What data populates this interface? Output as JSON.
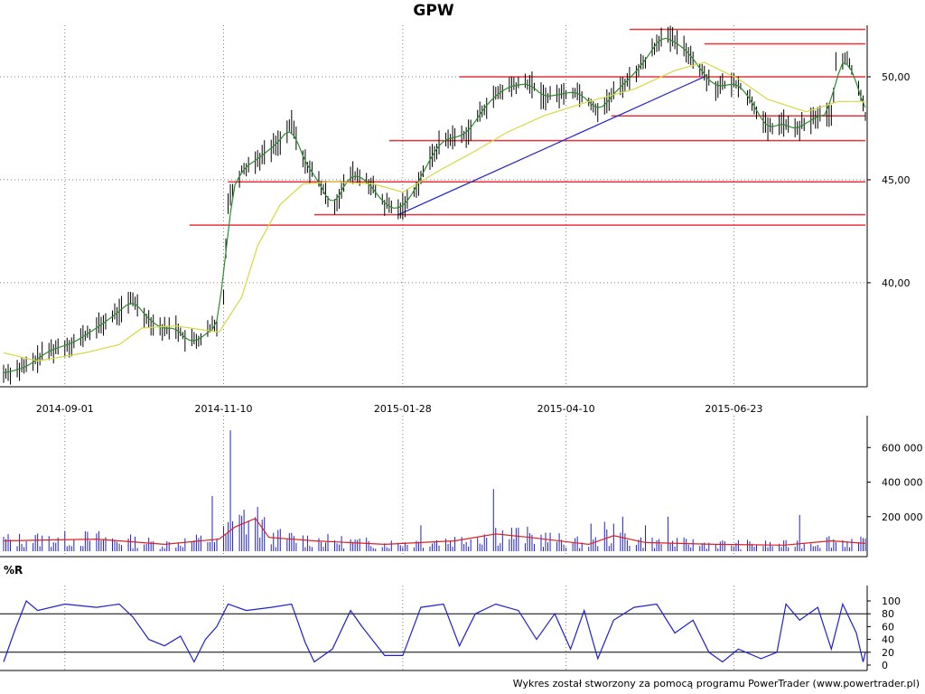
{
  "title": "GPW",
  "footer": "Wykres został stworzony za pomocą programu PowerTrader (www.powertrader.pl)",
  "colors": {
    "candle": "#000000",
    "ma_short": "#2e8b2e",
    "ma_long": "#d8d840",
    "resistance": "#e8333a",
    "trendline": "#2020d0",
    "volume": "#2020c8",
    "volume_avg": "#e02020",
    "wr_line": "#2020d0",
    "grid": "#808080"
  },
  "chart_data": [
    {
      "type": "line",
      "name": "price",
      "x_range": [
        "2014-08-05",
        "2015-08-20"
      ],
      "x_ticks": [
        "2014-09-01",
        "2014-11-10",
        "2015-01-28",
        "2015-04-10",
        "2015-06-23"
      ],
      "ylim": [
        35.3,
        52.5
      ],
      "y_ticks": [
        "40,00",
        "45,00",
        "50,00"
      ],
      "y_tick_values": [
        40,
        45,
        50
      ],
      "price_path": [
        [
          "2014-08-05",
          35.6
        ],
        [
          "2014-08-15",
          35.9
        ],
        [
          "2014-08-25",
          36.7
        ],
        [
          "2014-09-05",
          37.1
        ],
        [
          "2014-09-15",
          37.8
        ],
        [
          "2014-09-25",
          38.6
        ],
        [
          "2014-10-01",
          39.2
        ],
        [
          "2014-10-08",
          38.2
        ],
        [
          "2014-10-15",
          37.7
        ],
        [
          "2014-10-20",
          37.9
        ],
        [
          "2014-10-25",
          37.1
        ],
        [
          "2014-11-01",
          37.3
        ],
        [
          "2014-11-05",
          37.9
        ],
        [
          "2014-11-08",
          37.7
        ],
        [
          "2014-11-10",
          39.5
        ],
        [
          "2014-11-12",
          44.0
        ],
        [
          "2014-11-18",
          45.5
        ],
        [
          "2014-11-25",
          46.0
        ],
        [
          "2014-12-05",
          46.9
        ],
        [
          "2014-12-10",
          47.7
        ],
        [
          "2014-12-15",
          46.0
        ],
        [
          "2014-12-22",
          44.9
        ],
        [
          "2014-12-28",
          43.6
        ],
        [
          "2015-01-05",
          45.3
        ],
        [
          "2015-01-12",
          45.0
        ],
        [
          "2015-01-20",
          43.8
        ],
        [
          "2015-01-26",
          43.5
        ],
        [
          "2015-02-01",
          44.2
        ],
        [
          "2015-02-07",
          45.6
        ],
        [
          "2015-02-14",
          46.9
        ],
        [
          "2015-02-25",
          47.2
        ],
        [
          "2015-03-07",
          48.8
        ],
        [
          "2015-03-15",
          49.5
        ],
        [
          "2015-03-25",
          49.7
        ],
        [
          "2015-03-31",
          49.0
        ],
        [
          "2015-04-15",
          49.3
        ],
        [
          "2015-04-25",
          48.3
        ],
        [
          "2015-05-01",
          49.2
        ],
        [
          "2015-05-08",
          49.9
        ],
        [
          "2015-05-15",
          50.8
        ],
        [
          "2015-05-22",
          52.0
        ],
        [
          "2015-05-28",
          51.7
        ],
        [
          "2015-06-03",
          51.2
        ],
        [
          "2015-06-10",
          50.1
        ],
        [
          "2015-06-15",
          49.5
        ],
        [
          "2015-06-25",
          49.7
        ],
        [
          "2015-07-02",
          48.6
        ],
        [
          "2015-07-08",
          47.4
        ],
        [
          "2015-07-14",
          47.8
        ],
        [
          "2015-07-20",
          47.4
        ],
        [
          "2015-07-27",
          47.9
        ],
        [
          "2015-08-01",
          48.2
        ],
        [
          "2015-08-05",
          48.1
        ],
        [
          "2015-08-07",
          50.5
        ],
        [
          "2015-08-12",
          50.9
        ],
        [
          "2015-08-17",
          49.5
        ],
        [
          "2015-08-20",
          48.1
        ]
      ],
      "ma_long_path": [
        [
          "2014-08-05",
          36.6
        ],
        [
          "2014-08-20",
          36.2
        ],
        [
          "2014-09-10",
          36.6
        ],
        [
          "2014-09-25",
          37.0
        ],
        [
          "2014-10-05",
          37.8
        ],
        [
          "2014-10-20",
          37.9
        ],
        [
          "2014-11-08",
          37.6
        ],
        [
          "2014-11-18",
          39.3
        ],
        [
          "2014-11-25",
          41.8
        ],
        [
          "2014-12-05",
          43.8
        ],
        [
          "2014-12-15",
          44.8
        ],
        [
          "2014-12-28",
          44.9
        ],
        [
          "2015-01-15",
          44.8
        ],
        [
          "2015-01-28",
          44.4
        ],
        [
          "2015-02-14",
          45.5
        ],
        [
          "2015-03-01",
          46.4
        ],
        [
          "2015-03-15",
          47.3
        ],
        [
          "2015-03-31",
          48.1
        ],
        [
          "2015-04-20",
          48.8
        ],
        [
          "2015-05-10",
          49.4
        ],
        [
          "2015-05-28",
          50.3
        ],
        [
          "2015-06-10",
          50.7
        ],
        [
          "2015-06-25",
          49.9
        ],
        [
          "2015-07-08",
          48.9
        ],
        [
          "2015-07-25",
          48.3
        ],
        [
          "2015-08-08",
          48.8
        ],
        [
          "2015-08-20",
          48.8
        ]
      ],
      "resistance_lines": [
        {
          "y": 52.3,
          "from": "2015-05-08",
          "to": "2015-08-20"
        },
        {
          "y": 51.6,
          "from": "2015-06-10",
          "to": "2015-08-20"
        },
        {
          "y": 50.0,
          "from": "2015-02-22",
          "to": "2015-08-20"
        },
        {
          "y": 48.1,
          "from": "2015-04-30",
          "to": "2015-08-20"
        },
        {
          "y": 46.9,
          "from": "2015-01-22",
          "to": "2015-08-20"
        },
        {
          "y": 44.9,
          "from": "2014-11-12",
          "to": "2015-08-20"
        },
        {
          "y": 43.3,
          "from": "2014-12-20",
          "to": "2015-08-20"
        },
        {
          "y": 42.8,
          "from": "2014-10-26",
          "to": "2015-08-20"
        }
      ],
      "trendline": {
        "from": [
          "2015-01-26",
          43.3
        ],
        "to": [
          "2015-06-10",
          50.0
        ]
      }
    },
    {
      "type": "bar",
      "name": "volume",
      "ylim": [
        0,
        680000
      ],
      "y_ticks": [
        "200 000",
        "400 000",
        "600 000"
      ],
      "y_tick_values": [
        200000,
        400000,
        600000
      ],
      "spikes": [
        [
          "2014-11-05",
          320000
        ],
        [
          "2014-11-13",
          700000
        ],
        [
          "2014-11-16",
          260000
        ],
        [
          "2014-11-19",
          240000
        ],
        [
          "2015-02-05",
          150000
        ],
        [
          "2015-03-01",
          160000
        ],
        [
          "2015-03-09",
          360000
        ],
        [
          "2015-04-21",
          160000
        ],
        [
          "2015-04-27",
          170000
        ],
        [
          "2015-05-05",
          200000
        ],
        [
          "2015-05-15",
          150000
        ],
        [
          "2015-05-25",
          200000
        ],
        [
          "2015-07-22",
          210000
        ]
      ],
      "average_path": [
        [
          "2014-08-05",
          60000
        ],
        [
          "2014-09-15",
          70000
        ],
        [
          "2014-10-15",
          40000
        ],
        [
          "2014-11-08",
          70000
        ],
        [
          "2014-11-15",
          140000
        ],
        [
          "2014-11-24",
          190000
        ],
        [
          "2014-11-30",
          80000
        ],
        [
          "2014-12-20",
          60000
        ],
        [
          "2015-01-20",
          40000
        ],
        [
          "2015-02-20",
          60000
        ],
        [
          "2015-03-10",
          100000
        ],
        [
          "2015-03-25",
          80000
        ],
        [
          "2015-04-20",
          40000
        ],
        [
          "2015-05-01",
          90000
        ],
        [
          "2015-05-15",
          50000
        ],
        [
          "2015-06-15",
          40000
        ],
        [
          "2015-07-15",
          35000
        ],
        [
          "2015-08-05",
          60000
        ],
        [
          "2015-08-20",
          45000
        ]
      ]
    },
    {
      "type": "line",
      "name": "wr",
      "title": "%R",
      "ylim": [
        0,
        100
      ],
      "y_ticks": [
        "100",
        "80",
        "60",
        "40",
        "20",
        "0"
      ],
      "y_tick_values": [
        100,
        80,
        60,
        40,
        20,
        0
      ],
      "reference_lines": [
        80,
        20
      ],
      "path": [
        [
          "2014-08-05",
          5
        ],
        [
          "2014-08-10",
          55
        ],
        [
          "2014-08-15",
          100
        ],
        [
          "2014-08-20",
          85
        ],
        [
          "2014-09-01",
          95
        ],
        [
          "2014-09-15",
          90
        ],
        [
          "2014-09-25",
          95
        ],
        [
          "2014-10-01",
          75
        ],
        [
          "2014-10-08",
          40
        ],
        [
          "2014-10-15",
          30
        ],
        [
          "2014-10-22",
          45
        ],
        [
          "2014-10-28",
          5
        ],
        [
          "2014-11-02",
          40
        ],
        [
          "2014-11-07",
          60
        ],
        [
          "2014-11-12",
          95
        ],
        [
          "2014-11-20",
          85
        ],
        [
          "2014-12-01",
          90
        ],
        [
          "2014-12-10",
          95
        ],
        [
          "2014-12-16",
          35
        ],
        [
          "2014-12-20",
          5
        ],
        [
          "2014-12-28",
          25
        ],
        [
          "2015-01-05",
          85
        ],
        [
          "2015-01-10",
          60
        ],
        [
          "2015-01-20",
          15
        ],
        [
          "2015-01-28",
          15
        ],
        [
          "2015-02-05",
          90
        ],
        [
          "2015-02-15",
          95
        ],
        [
          "2015-02-22",
          30
        ],
        [
          "2015-03-01",
          80
        ],
        [
          "2015-03-10",
          95
        ],
        [
          "2015-03-20",
          85
        ],
        [
          "2015-03-28",
          40
        ],
        [
          "2015-04-05",
          80
        ],
        [
          "2015-04-12",
          25
        ],
        [
          "2015-04-18",
          85
        ],
        [
          "2015-04-24",
          10
        ],
        [
          "2015-05-01",
          70
        ],
        [
          "2015-05-10",
          90
        ],
        [
          "2015-05-20",
          95
        ],
        [
          "2015-05-28",
          50
        ],
        [
          "2015-06-05",
          70
        ],
        [
          "2015-06-12",
          20
        ],
        [
          "2015-06-18",
          5
        ],
        [
          "2015-06-25",
          25
        ],
        [
          "2015-07-05",
          10
        ],
        [
          "2015-07-12",
          20
        ],
        [
          "2015-07-16",
          95
        ],
        [
          "2015-07-22",
          70
        ],
        [
          "2015-07-30",
          90
        ],
        [
          "2015-08-05",
          25
        ],
        [
          "2015-08-10",
          95
        ],
        [
          "2015-08-16",
          50
        ],
        [
          "2015-08-19",
          5
        ],
        [
          "2015-08-20",
          20
        ]
      ]
    }
  ]
}
